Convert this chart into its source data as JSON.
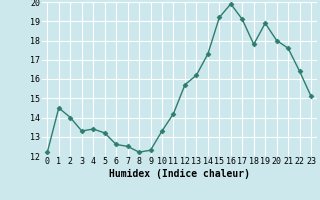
{
  "x": [
    0,
    1,
    2,
    3,
    4,
    5,
    6,
    7,
    8,
    9,
    10,
    11,
    12,
    13,
    14,
    15,
    16,
    17,
    18,
    19,
    20,
    21,
    22,
    23
  ],
  "y": [
    12.2,
    14.5,
    14.0,
    13.3,
    13.4,
    13.2,
    12.6,
    12.5,
    12.2,
    12.3,
    13.3,
    14.2,
    15.7,
    16.2,
    17.3,
    19.2,
    19.9,
    19.1,
    17.8,
    18.9,
    18.0,
    17.6,
    16.4,
    15.1
  ],
  "xlabel": "Humidex (Indice chaleur)",
  "ylim": [
    12,
    20
  ],
  "xlim_min": -0.5,
  "xlim_max": 23.5,
  "yticks": [
    12,
    13,
    14,
    15,
    16,
    17,
    18,
    19,
    20
  ],
  "xticks": [
    0,
    1,
    2,
    3,
    4,
    5,
    6,
    7,
    8,
    9,
    10,
    11,
    12,
    13,
    14,
    15,
    16,
    17,
    18,
    19,
    20,
    21,
    22,
    23
  ],
  "line_color": "#2d7d6e",
  "marker": "D",
  "marker_size": 2.5,
  "bg_color": "#cce8ec",
  "grid_color": "#ffffff",
  "xlabel_fontsize": 7,
  "tick_fontsize": 6,
  "linewidth": 1.0
}
